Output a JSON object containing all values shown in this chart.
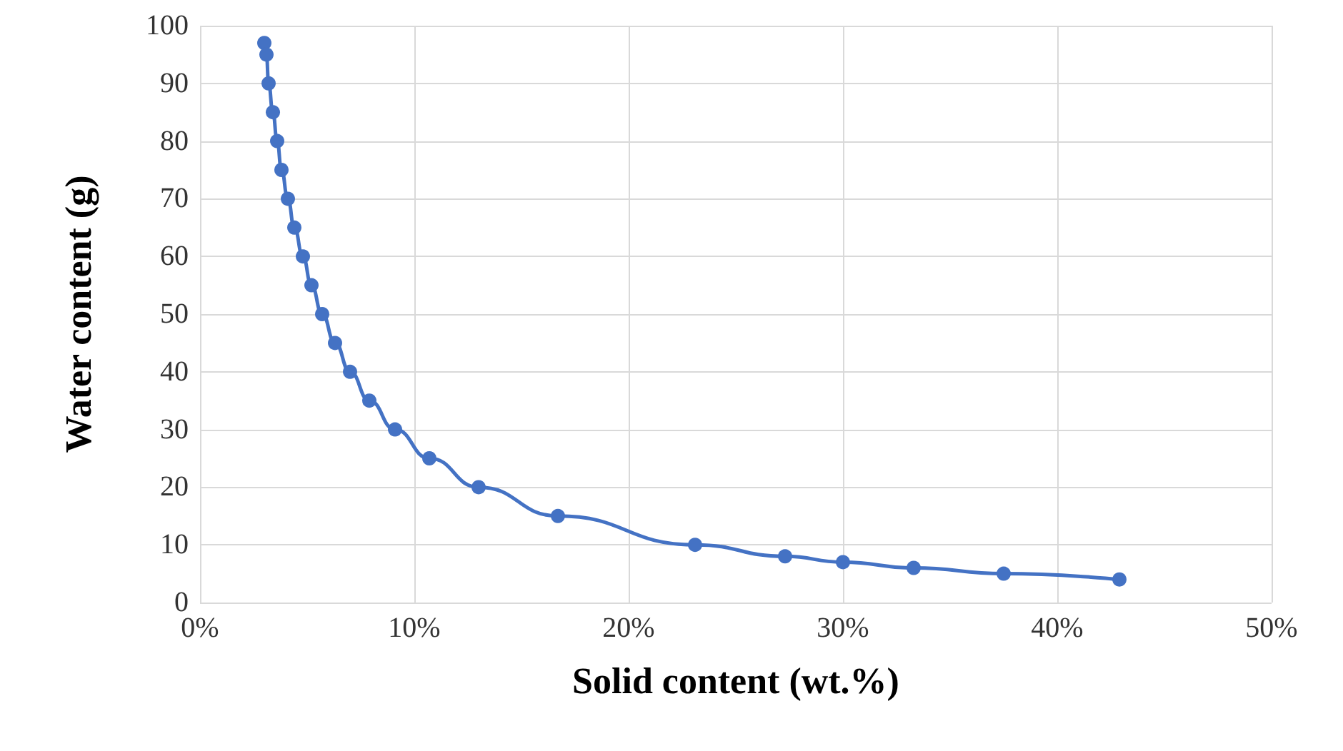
{
  "chart_data": {
    "type": "line",
    "xlabel": "Solid content (wt.%)",
    "ylabel": "Water content (g)",
    "x": [
      3.0,
      3.1,
      3.2,
      3.4,
      3.6,
      3.8,
      4.1,
      4.4,
      4.8,
      5.2,
      5.7,
      6.3,
      7.0,
      7.9,
      9.1,
      10.7,
      13.0,
      16.7,
      23.1,
      27.3,
      30.0,
      33.3,
      37.5,
      42.9
    ],
    "series": [
      {
        "color": "#4472c4",
        "values": [
          97,
          95,
          90,
          85,
          80,
          75,
          70,
          65,
          60,
          55,
          50,
          45,
          40,
          35,
          30,
          25,
          20,
          15,
          10,
          8,
          7,
          6,
          5,
          4
        ]
      }
    ],
    "xlim": [
      0,
      50
    ],
    "xticks": [
      {
        "value": 0,
        "label": "0%"
      },
      {
        "value": 10,
        "label": "10%"
      },
      {
        "value": 20,
        "label": "20%"
      },
      {
        "value": 30,
        "label": "30%"
      },
      {
        "value": 40,
        "label": "40%"
      },
      {
        "value": 50,
        "label": "50%"
      }
    ],
    "ylim": [
      0,
      100
    ],
    "yticks": [
      0,
      10,
      20,
      30,
      40,
      50,
      60,
      70,
      80,
      90,
      100
    ],
    "grid": true,
    "marker": "circle",
    "line_style": "solid"
  }
}
